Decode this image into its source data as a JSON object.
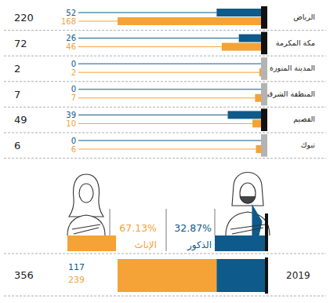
{
  "chart_data": [
    {
      "type": "bar",
      "orientation": "horizontal",
      "categories": [
        "الرياض",
        "مكة المكرمة",
        "المدينة المنورة",
        "المنطقة الشرقية",
        "القصيم",
        "تبوك"
      ],
      "series": [
        {
          "color": "#0e5a8a",
          "values": [
            52,
            26,
            0,
            0,
            39,
            0
          ]
        },
        {
          "color": "#f5a236",
          "values": [
            168,
            46,
            2,
            7,
            10,
            6
          ]
        }
      ],
      "totals": [
        220,
        72,
        2,
        7,
        49,
        6
      ],
      "xlim": [
        0,
        168
      ],
      "tick_labels": false,
      "data_labels": true
    },
    {
      "type": "bar",
      "orientation": "horizontal",
      "stacked": true,
      "categories": [
        "2019"
      ],
      "series": [
        {
          "name": "الذكور",
          "color": "#0e5a8a",
          "values": [
            117
          ],
          "percent_labels": [
            "32.87%"
          ]
        },
        {
          "name": "الإناث",
          "color": "#f5a236",
          "values": [
            239
          ],
          "percent_labels": [
            "67.13%"
          ]
        }
      ],
      "totals": [
        356
      ],
      "xlim": [
        0,
        356
      ],
      "tick_labels": false,
      "data_labels": true
    }
  ]
}
